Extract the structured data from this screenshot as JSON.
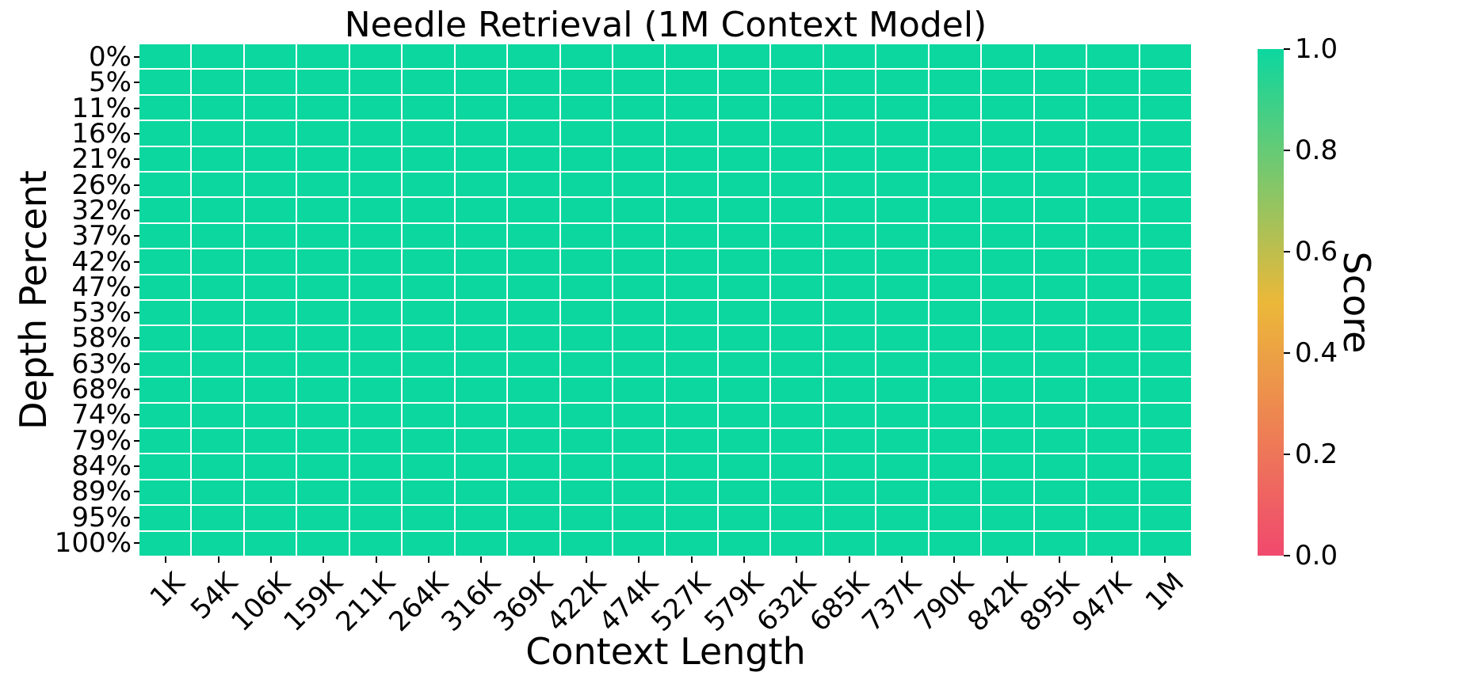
{
  "title": "Needle Retrieval (1M Context Model)",
  "xlabel": "Context Length",
  "ylabel": "Depth Percent",
  "colorbar": {
    "label": "Score",
    "ticks": [
      {
        "label": "1.0",
        "value": 1.0
      },
      {
        "label": "0.8",
        "value": 0.8
      },
      {
        "label": "0.6",
        "value": 0.6
      },
      {
        "label": "0.4",
        "value": 0.4
      },
      {
        "label": "0.2",
        "value": 0.2
      },
      {
        "label": "0.0",
        "value": 0.0
      }
    ]
  },
  "chart_data": {
    "type": "heatmap",
    "title": "Needle Retrieval (1M Context Model)",
    "xlabel": "Context Length",
    "ylabel": "Depth Percent",
    "x_categories": [
      "1K",
      "54K",
      "106K",
      "159K",
      "211K",
      "264K",
      "316K",
      "369K",
      "422K",
      "474K",
      "527K",
      "579K",
      "632K",
      "685K",
      "737K",
      "790K",
      "842K",
      "895K",
      "947K",
      "1M"
    ],
    "y_categories": [
      "0%",
      "5%",
      "11%",
      "16%",
      "21%",
      "26%",
      "32%",
      "37%",
      "42%",
      "47%",
      "53%",
      "58%",
      "63%",
      "68%",
      "74%",
      "79%",
      "84%",
      "89%",
      "95%",
      "100%"
    ],
    "values": [
      [
        1,
        1,
        1,
        1,
        1,
        1,
        1,
        1,
        1,
        1,
        1,
        1,
        1,
        1,
        1,
        1,
        1,
        1,
        1,
        1
      ],
      [
        1,
        1,
        1,
        1,
        1,
        1,
        1,
        1,
        1,
        1,
        1,
        1,
        1,
        1,
        1,
        1,
        1,
        1,
        1,
        1
      ],
      [
        1,
        1,
        1,
        1,
        1,
        1,
        1,
        1,
        1,
        1,
        1,
        1,
        1,
        1,
        1,
        1,
        1,
        1,
        1,
        1
      ],
      [
        1,
        1,
        1,
        1,
        1,
        1,
        1,
        1,
        1,
        1,
        1,
        1,
        1,
        1,
        1,
        1,
        1,
        1,
        1,
        1
      ],
      [
        1,
        1,
        1,
        1,
        1,
        1,
        1,
        1,
        1,
        1,
        1,
        1,
        1,
        1,
        1,
        1,
        1,
        1,
        1,
        1
      ],
      [
        1,
        1,
        1,
        1,
        1,
        1,
        1,
        1,
        1,
        1,
        1,
        1,
        1,
        1,
        1,
        1,
        1,
        1,
        1,
        1
      ],
      [
        1,
        1,
        1,
        1,
        1,
        1,
        1,
        1,
        1,
        1,
        1,
        1,
        1,
        1,
        1,
        1,
        1,
        1,
        1,
        1
      ],
      [
        1,
        1,
        1,
        1,
        1,
        1,
        1,
        1,
        1,
        1,
        1,
        1,
        1,
        1,
        1,
        1,
        1,
        1,
        1,
        1
      ],
      [
        1,
        1,
        1,
        1,
        1,
        1,
        1,
        1,
        1,
        1,
        1,
        1,
        1,
        1,
        1,
        1,
        1,
        1,
        1,
        1
      ],
      [
        1,
        1,
        1,
        1,
        1,
        1,
        1,
        1,
        1,
        1,
        1,
        1,
        1,
        1,
        1,
        1,
        1,
        1,
        1,
        1
      ],
      [
        1,
        1,
        1,
        1,
        1,
        1,
        1,
        1,
        1,
        1,
        1,
        1,
        1,
        1,
        1,
        1,
        1,
        1,
        1,
        1
      ],
      [
        1,
        1,
        1,
        1,
        1,
        1,
        1,
        1,
        1,
        1,
        1,
        1,
        1,
        1,
        1,
        1,
        1,
        1,
        1,
        1
      ],
      [
        1,
        1,
        1,
        1,
        1,
        1,
        1,
        1,
        1,
        1,
        1,
        1,
        1,
        1,
        1,
        1,
        1,
        1,
        1,
        1
      ],
      [
        1,
        1,
        1,
        1,
        1,
        1,
        1,
        1,
        1,
        1,
        1,
        1,
        1,
        1,
        1,
        1,
        1,
        1,
        1,
        1
      ],
      [
        1,
        1,
        1,
        1,
        1,
        1,
        1,
        1,
        1,
        1,
        1,
        1,
        1,
        1,
        1,
        1,
        1,
        1,
        1,
        1
      ],
      [
        1,
        1,
        1,
        1,
        1,
        1,
        1,
        1,
        1,
        1,
        1,
        1,
        1,
        1,
        1,
        1,
        1,
        1,
        1,
        1
      ],
      [
        1,
        1,
        1,
        1,
        1,
        1,
        1,
        1,
        1,
        1,
        1,
        1,
        1,
        1,
        1,
        1,
        1,
        1,
        1,
        1
      ],
      [
        1,
        1,
        1,
        1,
        1,
        1,
        1,
        1,
        1,
        1,
        1,
        1,
        1,
        1,
        1,
        1,
        1,
        1,
        1,
        1
      ],
      [
        1,
        1,
        1,
        1,
        1,
        1,
        1,
        1,
        1,
        1,
        1,
        1,
        1,
        1,
        1,
        1,
        1,
        1,
        1,
        1
      ],
      [
        1,
        1,
        1,
        1,
        1,
        1,
        1,
        1,
        1,
        1,
        1,
        1,
        1,
        1,
        1,
        1,
        1,
        1,
        1,
        1
      ]
    ],
    "vmin": 0.0,
    "vmax": 1.0,
    "colormap_stops": [
      "#F0496E",
      "#EBB839",
      "#0CD79F"
    ],
    "cell_gridline_color": "#ffffff",
    "colorbar_label": "Score",
    "colorbar_position": "right",
    "x_tick_rotation_deg": 45
  }
}
